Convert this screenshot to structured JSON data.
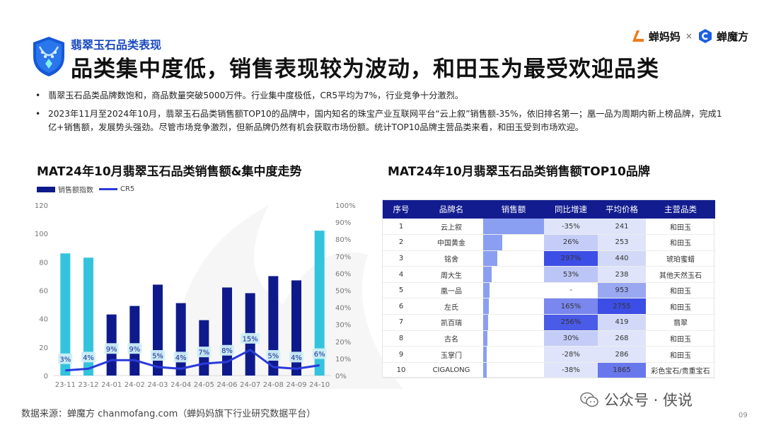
{
  "header": {
    "subtitle": "翡翠玉石品类表现",
    "title": "品类集中度低，销售表现较为波动，和田玉为最受欢迎品类",
    "logo_left": "蝉妈妈",
    "logo_times": "×",
    "logo_right": "蝉魔方"
  },
  "bullets": [
    "•",
    "翡翠玉石品类品牌数饱和，商品数量突破5000万件。行业集中度极低，CR5平均为7%，行业竞争十分激烈。",
    "2023年11月至2024年10月，翡翠玉石品类销售额TOP10的品牌中，国内知名的珠宝产业互联网平台“云上叙”销售额-35%，依旧排名第一；凰一品为周期内新上榜品牌，完成1亿+销售额，发展势头强劲。尽管市场竞争激烈，但新品牌仍然有机会获取市场份额。统计TOP10品牌主营品类来看，和田玉受到市场欢迎。"
  ],
  "left_chart_title": "MAT24年10月翡翠玉石品类销售额&集中度走势",
  "right_chart_title": "MAT24年10月翡翠玉石品类销售额TOP10品牌",
  "chart_data": [
    {
      "type": "bar",
      "categories": [
        "23-11",
        "23-12",
        "24-01",
        "24-02",
        "24-03",
        "24-04",
        "24-05",
        "24-06",
        "24-07",
        "24-08",
        "24-09",
        "24-10"
      ],
      "series": [
        {
          "name": "销售额指数",
          "type": "bar",
          "axis": "left",
          "values": [
            86,
            83,
            43,
            49,
            64,
            51,
            39,
            62,
            58,
            70,
            67,
            102
          ],
          "colors": [
            "#33c3dd",
            "#33c3dd",
            "#0e1a8c",
            "#0e1a8c",
            "#0e1a8c",
            "#0e1a8c",
            "#0e1a8c",
            "#0e1a8c",
            "#0e1a8c",
            "#0e1a8c",
            "#0e1a8c",
            "#33c3dd"
          ]
        },
        {
          "name": "CR5",
          "type": "line",
          "axis": "right",
          "values": [
            3,
            4,
            9,
            9,
            5,
            4,
            7,
            8,
            15,
            5,
            4,
            6
          ],
          "labels": [
            "3%",
            "4%",
            "9%",
            "9%",
            "5%",
            "4%",
            "7%",
            "8%",
            "15%",
            "5%",
            "4%",
            "6%"
          ],
          "color": "#2a3bd9"
        }
      ],
      "y_left": {
        "ticks": [
          0,
          20,
          40,
          60,
          80,
          100,
          120
        ],
        "ylim": [
          0,
          120
        ]
      },
      "y_right": {
        "ticks": [
          "0%",
          "10%",
          "20%",
          "30%",
          "40%",
          "50%",
          "60%",
          "70%",
          "80%",
          "90%",
          "100%"
        ],
        "ylim": [
          0,
          100
        ]
      },
      "legend_position": "top-left",
      "grid": false
    },
    {
      "type": "table",
      "columns": [
        "序号",
        "品牌名",
        "销售额",
        "同比增速",
        "平均价格",
        "主营品类"
      ],
      "rows": [
        {
          "rank": "1",
          "brand": "云上叙",
          "sales_share": 1.0,
          "yoy": "-35%",
          "price": "241",
          "category": "和田玉",
          "yoy_bg": "#dfe4fb",
          "price_bg": "#dfe4fb"
        },
        {
          "rank": "2",
          "brand": "中国黄金",
          "sales_share": 0.31,
          "yoy": "26%",
          "price": "253",
          "category": "和田玉",
          "yoy_bg": "#c4cdf7",
          "price_bg": "#dfe4fb"
        },
        {
          "rank": "3",
          "brand": "铭舍",
          "sales_share": 0.23,
          "yoy": "297%",
          "price": "440",
          "category": "琥珀蜜蜡",
          "yoy_bg": "#3d4ee6",
          "price_bg": "#d2d9f8"
        },
        {
          "rank": "4",
          "brand": "周大生",
          "sales_share": 0.14,
          "yoy": "53%",
          "price": "238",
          "category": "其他天然玉石",
          "yoy_bg": "#bcc6f6",
          "price_bg": "#dfe4fb"
        },
        {
          "rank": "5",
          "brand": "凰一品",
          "sales_share": 0.1,
          "yoy": "-",
          "price": "953",
          "category": "和田玉",
          "yoy_bg": "#ffffff",
          "price_bg": "#9aa8f1"
        },
        {
          "rank": "6",
          "brand": "左氏",
          "sales_share": 0.09,
          "yoy": "165%",
          "price": "2755",
          "category": "和田玉",
          "yoy_bg": "#7987ee",
          "price_bg": "#3c4ee6"
        },
        {
          "rank": "7",
          "brand": "凯百瑞",
          "sales_share": 0.08,
          "yoy": "256%",
          "price": "419",
          "category": "翡翠",
          "yoy_bg": "#4a5be8",
          "price_bg": "#d2d9f8"
        },
        {
          "rank": "8",
          "brand": "古名",
          "sales_share": 0.07,
          "yoy": "30%",
          "price": "268",
          "category": "和田玉",
          "yoy_bg": "#c4cdf7",
          "price_bg": "#dfe4fb"
        },
        {
          "rank": "9",
          "brand": "玉掌门",
          "sales_share": 0.06,
          "yoy": "-28%",
          "price": "286",
          "category": "和田玉",
          "yoy_bg": "#dfe4fb",
          "price_bg": "#dfe4fb"
        },
        {
          "rank": "10",
          "brand": "CIGALONG",
          "sales_share": 0.06,
          "yoy": "-38%",
          "price": "1865",
          "category": "彩色宝石/贵重宝石",
          "yoy_bg": "#dfe4fb",
          "price_bg": "#6877ec"
        }
      ]
    }
  ],
  "footer": {
    "source": "数据来源：蝉魔方 chanmofang.com（蝉妈妈旗下行业研究数据平台）",
    "page": "09",
    "wechat": "公众号 · 侠说"
  }
}
